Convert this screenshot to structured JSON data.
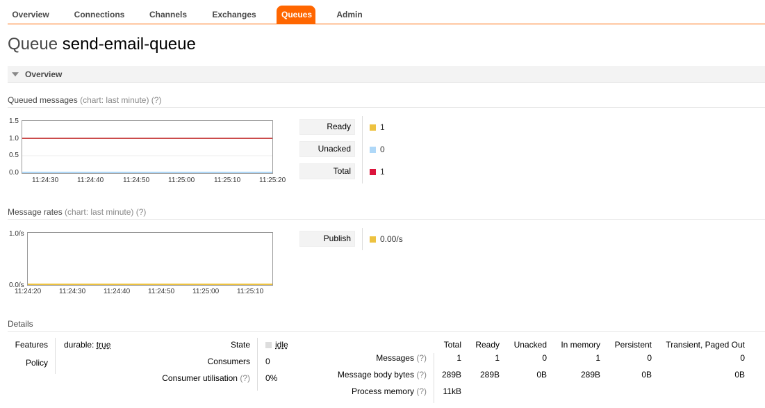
{
  "nav": {
    "tabs": [
      {
        "label": "Overview"
      },
      {
        "label": "Connections"
      },
      {
        "label": "Channels"
      },
      {
        "label": "Exchanges"
      },
      {
        "label": "Queues"
      },
      {
        "label": "Admin"
      }
    ],
    "active_index": 4
  },
  "page": {
    "title_keyword": "Queue",
    "title_name": "send-email-queue"
  },
  "overview_section": {
    "label": "Overview"
  },
  "queued_messages": {
    "heading": "Queued messages",
    "meta": "(chart: last minute) (?)",
    "chart_data": {
      "type": "line",
      "ylim": [
        0,
        1.5
      ],
      "y_ticks": [
        "0.0",
        "0.5",
        "1.0",
        "1.5"
      ],
      "x_ticks": [
        "11:24:30",
        "11:24:40",
        "11:24:50",
        "11:25:00",
        "11:25:10",
        "11:25:20"
      ],
      "series": [
        {
          "name": "Ready",
          "value": 1,
          "color": "#edc240"
        },
        {
          "name": "Unacked",
          "value": 0,
          "color": "#afd8f8"
        },
        {
          "name": "Total",
          "value": 1,
          "color": "#cb4b4b"
        }
      ]
    },
    "legend": [
      {
        "label": "Ready",
        "value": "1",
        "color": "#edc240"
      },
      {
        "label": "Unacked",
        "value": "0",
        "color": "#afd8f8"
      },
      {
        "label": "Total",
        "value": "1",
        "color": "#dc143c"
      }
    ]
  },
  "message_rates": {
    "heading": "Message rates",
    "meta": "(chart: last minute) (?)",
    "chart_data": {
      "type": "line",
      "ylim": [
        0,
        1
      ],
      "y_ticks": [
        "0.0/s",
        "1.0/s"
      ],
      "x_ticks": [
        "11:24:20",
        "11:24:30",
        "11:24:40",
        "11:24:50",
        "11:25:00",
        "11:25:10"
      ],
      "series": [
        {
          "name": "Publish",
          "value": 0,
          "color": "#edc240"
        }
      ]
    },
    "legend": [
      {
        "label": "Publish",
        "value": "0.00/s",
        "color": "#edc240"
      }
    ]
  },
  "details": {
    "heading": "Details",
    "features_label": "Features",
    "features_value_key": "durable:",
    "features_value": "true",
    "policy_label": "Policy",
    "state_label": "State",
    "state_value": "idle",
    "consumers_label": "Consumers",
    "consumers_value": "0",
    "utilisation_label": "Consumer utilisation",
    "utilisation_value": "0%",
    "help": "(?)",
    "columns": [
      "Total",
      "Ready",
      "Unacked",
      "In memory",
      "Persistent",
      "Transient, Paged Out"
    ],
    "rows": [
      {
        "label": "Messages",
        "values": [
          "1",
          "1",
          "0",
          "1",
          "0",
          "0"
        ]
      },
      {
        "label": "Message body bytes",
        "values": [
          "289B",
          "289B",
          "0B",
          "289B",
          "0B",
          "0B"
        ]
      },
      {
        "label": "Process memory",
        "values": [
          "11kB"
        ]
      }
    ]
  }
}
